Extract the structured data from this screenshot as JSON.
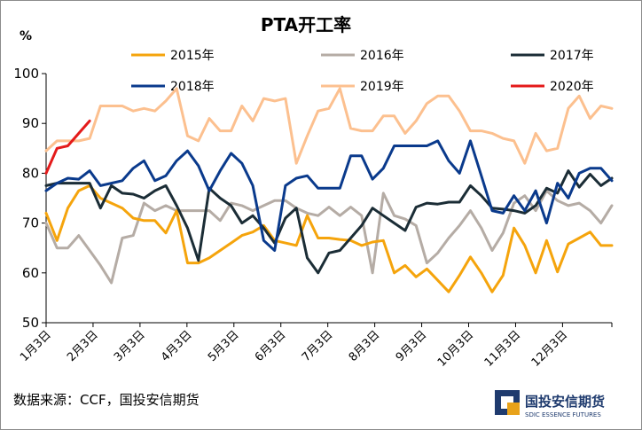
{
  "chart_data": {
    "type": "line",
    "title": "PTA开工率",
    "ylabel": "%",
    "ylim": [
      50,
      100
    ],
    "yticks": [
      50,
      60,
      70,
      80,
      90,
      100
    ],
    "xlabels": [
      "1月3日",
      "2月3日",
      "3月3日",
      "4月3日",
      "5月3日",
      "6月3日",
      "7月3日",
      "8月3日",
      "9月3日",
      "10月3日",
      "11月3日",
      "12月3日"
    ],
    "grid": false,
    "legend_position": "top",
    "series": [
      {
        "name": "2015年",
        "color": "#f5a40c",
        "values": [
          72,
          66.5,
          73,
          76.5,
          77.5,
          75,
          74,
          73,
          71,
          70.5,
          70.5,
          68,
          72.5,
          62,
          62,
          63,
          64.5,
          66,
          67.5,
          68.2,
          69.5,
          66.5,
          66,
          65.5,
          71.5,
          67,
          67,
          66.7,
          66.5,
          65.5,
          66.2,
          66.5,
          60,
          61.5,
          59.2,
          60.8,
          58.5,
          56.2,
          59.5,
          63.2,
          60,
          56.2,
          59.5,
          69,
          65.5,
          60,
          66.5,
          60.2,
          65.8,
          67,
          68.2,
          65.5,
          65.5
        ]
      },
      {
        "name": "2016年",
        "color": "#b5aca5",
        "values": [
          70,
          65,
          65,
          67.5,
          64.5,
          61.5,
          58,
          67,
          67.5,
          74,
          72.5,
          73.5,
          72.5,
          72.5,
          72.5,
          72.5,
          70.5,
          74,
          73.5,
          72.5,
          73.5,
          74.5,
          74.5,
          73,
          72,
          71.5,
          73.2,
          71.5,
          73.2,
          71.5,
          60,
          76,
          71.5,
          70.8,
          69.5,
          62,
          64,
          67,
          69.5,
          72.5,
          69,
          64.5,
          68,
          74,
          75.5,
          72.5,
          76.5,
          74.5,
          73.5,
          74,
          72.5,
          70,
          73.5
        ]
      },
      {
        "name": "2017年",
        "color": "#1b2d36",
        "values": [
          77.5,
          78,
          78,
          78,
          78,
          73,
          77.5,
          76,
          75.8,
          75,
          76.5,
          77.5,
          73.5,
          69,
          62.5,
          77,
          75,
          73.5,
          70,
          71.5,
          69,
          66,
          71,
          73,
          63,
          60,
          64,
          64.5,
          67,
          69.5,
          73,
          71.5,
          70,
          68.5,
          73.2,
          74,
          73.8,
          74.2,
          74.2,
          77.5,
          75.5,
          73,
          72.8,
          72.5,
          72,
          73.5,
          77,
          76,
          80.5,
          77.2,
          79.8,
          77.5,
          79
        ]
      },
      {
        "name": "2018年",
        "color": "#0a3a8c",
        "values": [
          76.5,
          78,
          79,
          78.8,
          80.5,
          77.5,
          78,
          78.5,
          81,
          82.5,
          78.5,
          79.5,
          82.5,
          84.5,
          81.5,
          76.5,
          80.5,
          84,
          82,
          77.5,
          66.5,
          64.5,
          77.5,
          79,
          79.5,
          77,
          77,
          77,
          83.5,
          83.5,
          78.8,
          81,
          85.5,
          85.5,
          85.5,
          85.5,
          86.5,
          82.5,
          80,
          86.5,
          79.5,
          72.5,
          72,
          75.5,
          72.5,
          76.5,
          70,
          78,
          75,
          80,
          81,
          81,
          78.5
        ]
      },
      {
        "name": "2019年",
        "color": "#fcc08f",
        "values": [
          84.5,
          86.5,
          86.5,
          86.5,
          87,
          93.5,
          93.5,
          93.5,
          92.5,
          93,
          92.5,
          94.5,
          97,
          87.5,
          86.5,
          91,
          88.5,
          88.5,
          93.5,
          90.5,
          95,
          94.5,
          95,
          82,
          87.5,
          92.5,
          93,
          97,
          89,
          88.5,
          88.5,
          91.5,
          91.5,
          88,
          90.5,
          94,
          95.5,
          95.5,
          92.5,
          88.5,
          88.5,
          88,
          87,
          86.5,
          82,
          88,
          84.5,
          85,
          93,
          95.5,
          91,
          93.5,
          93
        ]
      },
      {
        "name": "2020年",
        "color": "#e41a1a",
        "values": [
          80,
          85,
          85.5,
          88,
          90.5
        ]
      }
    ]
  },
  "source_text": "数据来源：CCF，国投安信期货",
  "logo": {
    "cn": "国投安信期货",
    "en": "SDIC ESSENCE FUTURES",
    "color": "#1f3b6e"
  }
}
